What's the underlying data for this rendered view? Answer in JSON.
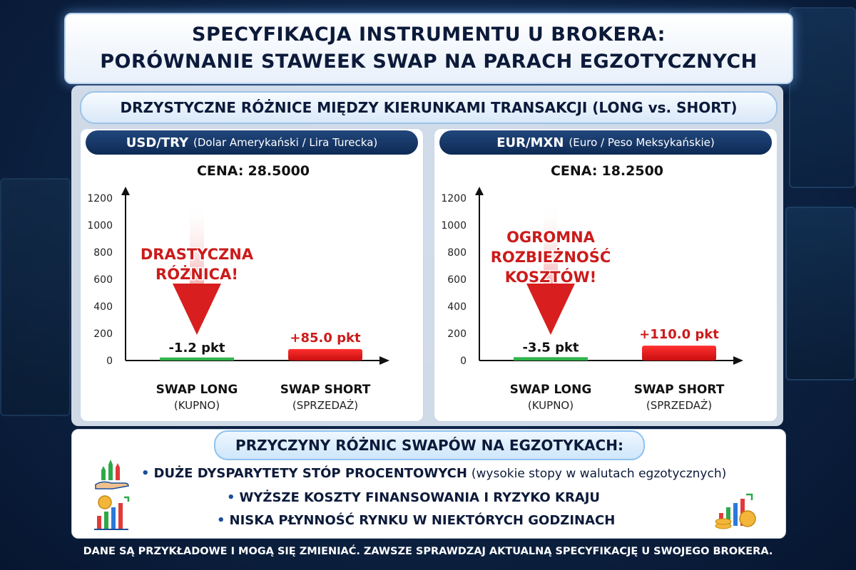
{
  "title": {
    "line1": "SPECYFIKACJA INSTRUMENTU U BROKERA:",
    "line2": "PORÓWNANIE STAWEEK SWAP NA PARACH EGZOTYCZNYCH"
  },
  "subtitle": "DRZYSTYCZNE RÓŻNICE MIĘDZY KIERUNKAMI TRANSAKCJI (LONG vs. SHORT)",
  "colors": {
    "negative_bar": "#2fb34a",
    "positive_bar": "#e51b1b",
    "annotation": "#cc1b1b",
    "header_bg": "#0e2a55"
  },
  "chart_data": [
    {
      "type": "bar",
      "pair": "USD/TRY",
      "pair_desc": "(Dolar Amerykański / Lira Turecka)",
      "price_label": "CENA:",
      "price_value": "28.5000",
      "categories": [
        "SWAP LONG",
        "SWAP SHORT"
      ],
      "category_sub": [
        "(KUPNO)",
        "(SPRZEDAŻ)"
      ],
      "values": [
        -1.2,
        85.0
      ],
      "value_labels": [
        "-1.2 pkt",
        "+85.0 pkt"
      ],
      "yticks": [
        "0",
        "200",
        "400",
        "600",
        "800",
        "1000",
        "1200"
      ],
      "ylim": [
        0,
        1200
      ],
      "annotation": [
        "DRASTYCZNA",
        "RÓŻNICA!"
      ]
    },
    {
      "type": "bar",
      "pair": "EUR/MXN",
      "pair_desc": "(Euro / Peso Meksykańskie)",
      "price_label": "CENA:",
      "price_value": "18.2500",
      "categories": [
        "SWAP LONG",
        "SWAP SHORT"
      ],
      "category_sub": [
        "(KUPNO)",
        "(SPRZEDAŻ)"
      ],
      "values": [
        -3.5,
        110.0
      ],
      "value_labels": [
        "-3.5 pkt",
        "+110.0 pkt"
      ],
      "yticks": [
        "0",
        "200",
        "400",
        "600",
        "800",
        "1000",
        "1200"
      ],
      "ylim": [
        0,
        1200
      ],
      "annotation": [
        "OGROMNA",
        "ROZBIEŻNOŚĆ",
        "KOSZTÓW!"
      ]
    }
  ],
  "reasons": {
    "title": "PRZYCZYNY RÓŻNIC SWAPÓW NA EGZOTYKACH:",
    "items": [
      {
        "text": "DUŻE DYSPARYTETY STÓP PROCENTOWYCH",
        "note": "(wysokie stopy w walutach egzotycznych)"
      },
      {
        "text": "WYŻSZE KOSZTY FINANSOWANIA I RYZYKO KRAJU",
        "note": ""
      },
      {
        "text": "NISKA PŁYNNOŚĆ RYNKU W NIEKTÓRYCH GODZINACH",
        "note": ""
      }
    ],
    "bullet": "•",
    "icons": [
      "growth-hand-icon",
      "money-chart-icon",
      "coins-chart-icon"
    ]
  },
  "footer": "DANE SĄ PRZYKŁADOWE I MOGĄ SIĘ ZMIENIAĆ. ZAWSZE SPRAWDZAJ AKTUALNĄ SPECYFIKACJĘ U SWOJEGO BROKERA."
}
